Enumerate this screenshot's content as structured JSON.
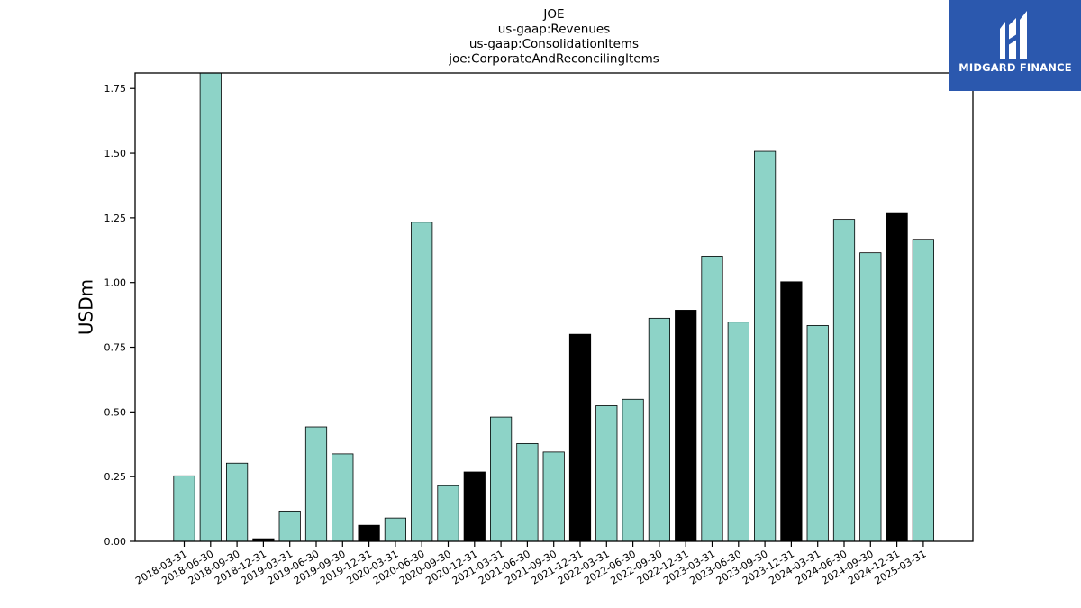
{
  "chart_data": {
    "type": "bar",
    "title": [
      "JOE",
      "us-gaap:Revenues",
      "us-gaap:ConsolidationItems",
      "joe:CorporateAndReconcilingItems"
    ],
    "xlabel": "",
    "ylabel": "USDm",
    "ylim": [
      0,
      1.81
    ],
    "yticks": [
      "0.00",
      "0.25",
      "0.50",
      "0.75",
      "1.00",
      "1.25",
      "1.50",
      "1.75"
    ],
    "grid": false,
    "colors": {
      "regular": "#8dd3c7",
      "year_end": "#000000",
      "edge": "#000000"
    },
    "categories": [
      "2018-03-31",
      "2018-06-30",
      "2018-09-30",
      "2018-12-31",
      "2019-03-31",
      "2019-06-30",
      "2019-09-30",
      "2019-12-31",
      "2020-03-31",
      "2020-06-30",
      "2020-09-30",
      "2020-12-31",
      "2021-03-31",
      "2021-06-30",
      "2021-09-30",
      "2021-12-31",
      "2022-03-31",
      "2022-06-30",
      "2022-09-30",
      "2022-12-31",
      "2023-03-31",
      "2023-06-30",
      "2023-09-30",
      "2023-12-31",
      "2024-03-31",
      "2024-06-30",
      "2024-09-30",
      "2024-12-31",
      "2025-03-31"
    ],
    "values": [
      0.253,
      1.81,
      0.302,
      0.01,
      0.117,
      0.442,
      0.338,
      0.062,
      0.09,
      1.233,
      0.215,
      0.268,
      0.48,
      0.378,
      0.345,
      0.8,
      0.524,
      0.549,
      0.862,
      0.893,
      1.102,
      0.847,
      1.507,
      1.003,
      0.834,
      1.244,
      1.115,
      1.27,
      1.167
    ],
    "highlight": [
      false,
      false,
      false,
      true,
      false,
      false,
      false,
      true,
      false,
      false,
      false,
      true,
      false,
      false,
      false,
      true,
      false,
      false,
      false,
      true,
      false,
      false,
      false,
      true,
      false,
      false,
      false,
      true,
      false
    ]
  },
  "logo": {
    "text": "MIDGARD FINANCE",
    "icon": "midgard-logo-icon"
  }
}
